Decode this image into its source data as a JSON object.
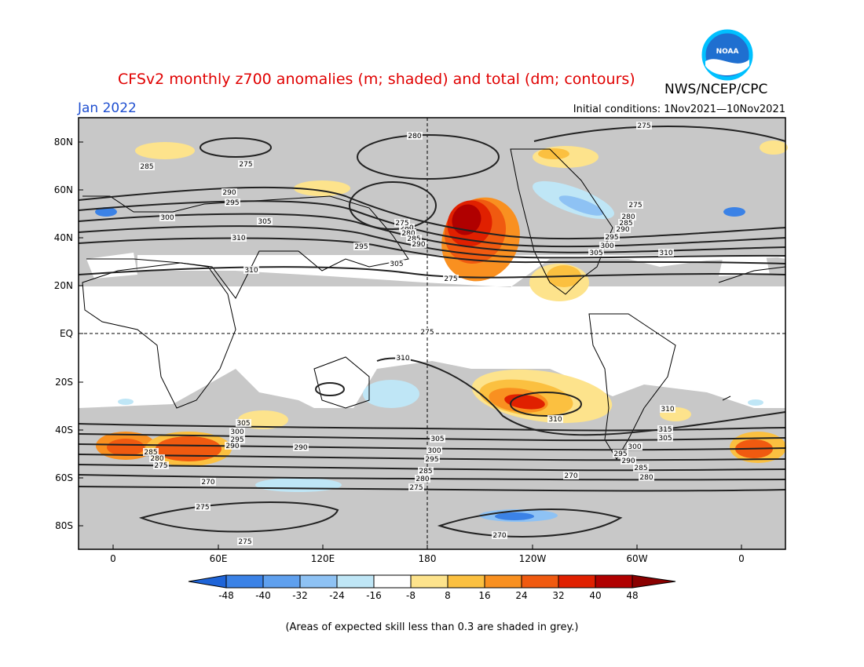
{
  "header": {
    "title": "CFSv2 monthly z700 anomalies (m; shaded) and total (dm; contours)",
    "org": "NWS/NCEP/CPC",
    "month": "Jan 2022",
    "initial_conditions": "Initial conditions: 1Nov2021—10Nov2021",
    "logo_text": "NOAA"
  },
  "map": {
    "lat_labels": [
      "80N",
      "60N",
      "40N",
      "20N",
      "EQ",
      "20S",
      "40S",
      "60S",
      "80S"
    ],
    "lon_labels": [
      "0",
      "60E",
      "120E",
      "180",
      "120W",
      "60W",
      "0"
    ],
    "contour_labels": [
      "275",
      "280",
      "275",
      "285",
      "290",
      "295",
      "300",
      "305",
      "310",
      "280",
      "275",
      "280",
      "285",
      "290",
      "295",
      "305",
      "310",
      "275",
      "275",
      "280",
      "285",
      "290",
      "295",
      "300",
      "305",
      "310",
      "310",
      "310",
      "305",
      "300",
      "295",
      "290",
      "285",
      "280",
      "275",
      "270",
      "275",
      "275",
      "290",
      "305",
      "300",
      "295",
      "285",
      "280",
      "275",
      "270",
      "270",
      "310",
      "315",
      "305",
      "300",
      "295",
      "290",
      "285",
      "280",
      "275"
    ],
    "skill_note": "(Areas of expected skill less than 0.3 are shaded in grey.)"
  },
  "colorbar": {
    "ticks": [
      "-48",
      "-40",
      "-32",
      "-24",
      "-16",
      "-8",
      "8",
      "16",
      "24",
      "32",
      "40",
      "48"
    ],
    "colors": [
      "#1e64d8",
      "#3b82e6",
      "#5fa0ee",
      "#8ec2f4",
      "#bfe6f6",
      "#ffffff",
      "#fde38c",
      "#fbc040",
      "#f99020",
      "#f05a10",
      "#e02000",
      "#b00000",
      "#8a0000"
    ]
  }
}
